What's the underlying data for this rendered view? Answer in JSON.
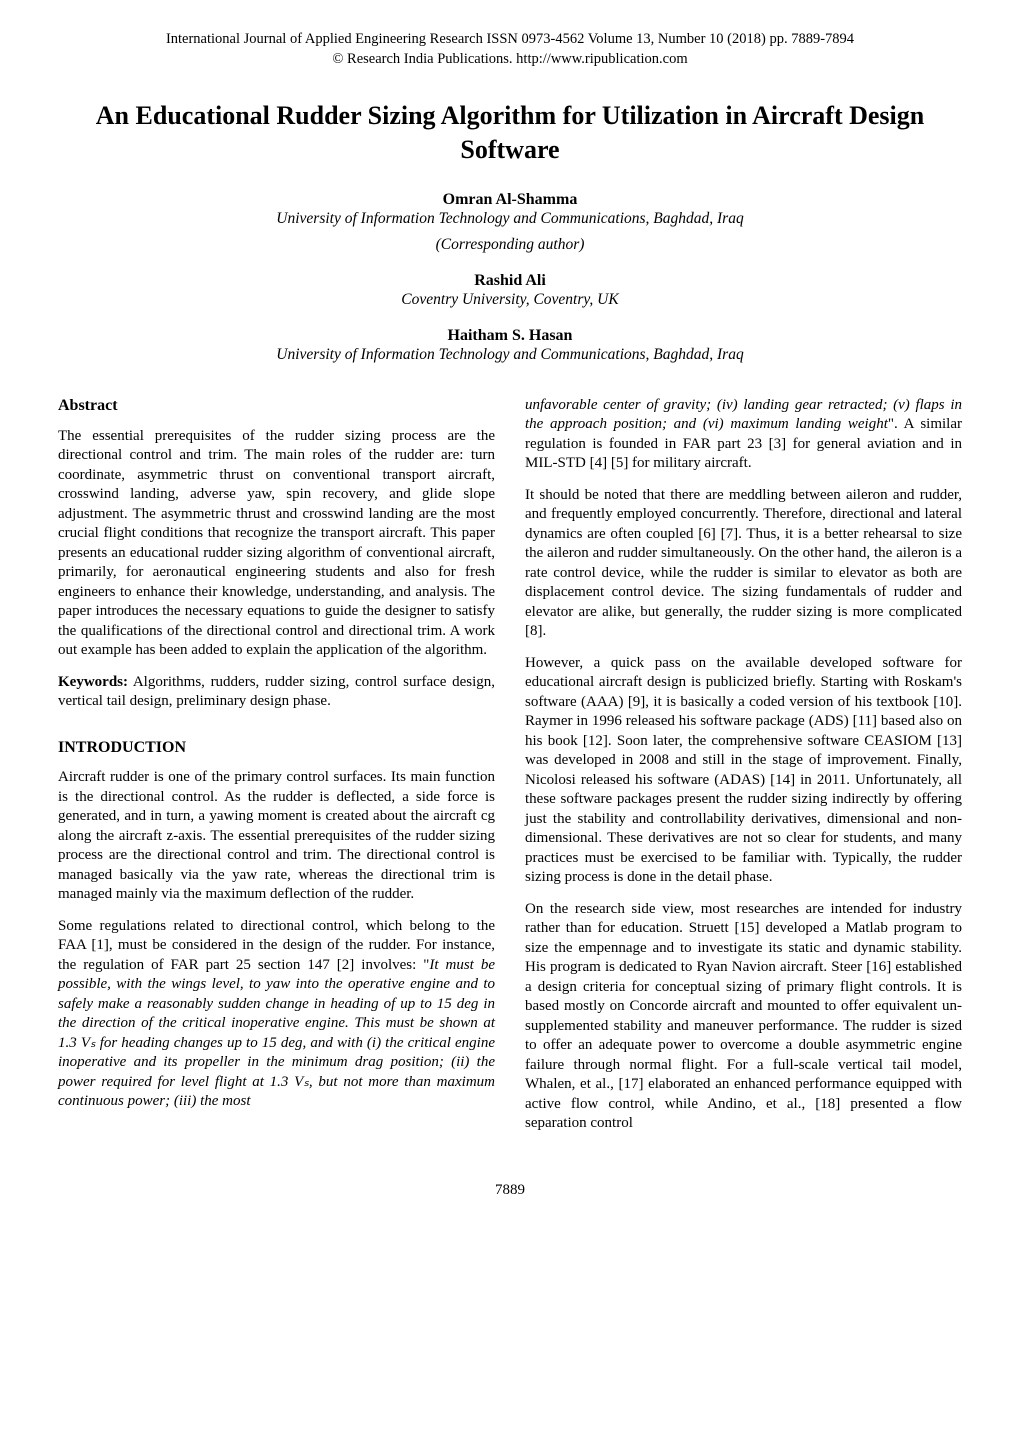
{
  "journal": {
    "line1": "International Journal of Applied Engineering Research ISSN 0973-4562 Volume 13, Number 10 (2018) pp. 7889-7894",
    "line2": "© Research India Publications.  http://www.ripublication.com"
  },
  "title": "An Educational Rudder Sizing Algorithm for Utilization in Aircraft Design Software",
  "authors": {
    "a1": {
      "name": "Omran Al-Shamma",
      "affiliation": "University of Information Technology and Communications, Baghdad, Iraq",
      "corresponding": "(Corresponding author)"
    },
    "a2": {
      "name": "Rashid Ali",
      "affiliation": "Coventry University, Coventry, UK"
    },
    "a3": {
      "name": "Haitham S. Hasan",
      "affiliation": "University of Information Technology and Communications, Baghdad, Iraq"
    }
  },
  "left": {
    "abstract_heading": "Abstract",
    "abstract_p1": "The essential prerequisites of the rudder sizing process are the directional control and trim. The main roles of the rudder are: turn coordinate, asymmetric thrust on conventional transport aircraft, crosswind landing, adverse yaw, spin recovery, and glide slope adjustment. The asymmetric thrust and crosswind landing are the most crucial flight conditions that recognize the transport aircraft. This paper presents an educational rudder sizing algorithm of conventional aircraft, primarily, for aeronautical engineering students and also for fresh engineers to enhance their knowledge, understanding, and analysis. The paper introduces the necessary equations to guide the designer to satisfy the qualifications of the directional control and directional trim. A work out example has been added to explain the application of the algorithm.",
    "kw_label": "Keywords:",
    "kw_text": " Algorithms, rudders, rudder sizing, control surface design, vertical tail design, preliminary design phase.",
    "intro_heading": "INTRODUCTION",
    "intro_p1": "Aircraft rudder is one of the primary control surfaces. Its main function is the directional control. As the rudder is deflected, a side force is generated, and in turn, a yawing moment is created about the aircraft cg along the aircraft z-axis. The essential prerequisites of the rudder sizing process are the directional control and trim. The directional control is managed basically via the yaw rate, whereas the directional trim is managed mainly via the maximum deflection of the rudder.",
    "intro_p2_a": "Some regulations related to directional control, which belong to the FAA [1], must be considered in the design of the rudder. For instance, the regulation of FAR part 25 section 147 [2] involves: \"",
    "intro_p2_italic": "It must be possible, with the wings level, to yaw into the operative engine and to safely make a reasonably sudden change in heading of up to 15 deg in the direction of the critical inoperative engine. This must be shown at 1.3 Vₛ for heading changes up to 15 deg, and with (i) the critical engine inoperative and its propeller in the minimum drag position; (ii) the power required for level flight at 1.3 Vₛ, but not more than maximum continuous power; (iii) the most"
  },
  "right": {
    "p1_italic": "unfavorable center of gravity; (iv) landing gear retracted; (v) flaps in the approach position; and (vi) maximum landing weight",
    "p1_b": "\". A similar regulation is founded in FAR part 23 [3] for general aviation and in MIL-STD [4] [5] for military aircraft.",
    "p2": "It should be noted that there are meddling between aileron and rudder, and frequently employed concurrently. Therefore, directional and lateral dynamics are often coupled [6] [7]. Thus, it is a better rehearsal to size the aileron and rudder simultaneously. On the other hand, the aileron is a rate control device, while the rudder is similar to elevator as both are displacement control device. The sizing fundamentals of rudder and elevator are alike, but generally, the rudder sizing is more complicated [8].",
    "p3": "However, a quick pass on the available developed software for educational aircraft design is publicized briefly. Starting with Roskam's software (AAA) [9], it is basically a coded version of his textbook [10]. Raymer in 1996 released his software package (ADS) [11] based also on his book [12]. Soon later, the comprehensive software CEASIOM [13] was developed in 2008 and still in the stage of improvement. Finally, Nicolosi released his software (ADAS) [14] in 2011. Unfortunately, all these software packages present the rudder sizing indirectly by offering just the stability and controllability derivatives, dimensional and non-dimensional. These derivatives are not so clear for students, and many practices must be exercised to be familiar with. Typically, the rudder sizing process is done in the detail phase.",
    "p4": "On the research side view, most researches are intended for industry rather than for education. Struett [15] developed a Matlab program to size the empennage and to investigate its static and dynamic stability. His program is dedicated to Ryan Navion aircraft. Steer [16] established a design criteria for conceptual sizing of primary flight controls. It is based mostly on Concorde aircraft and mounted to offer equivalent un-supplemented stability and maneuver performance. The rudder is sized to offer an adequate power to overcome a double asymmetric engine failure through normal flight. For a full-scale vertical tail model, Whalen, et al., [17] elaborated an enhanced performance equipped with active flow control, while Andino, et al., [18] presented a flow separation control"
  },
  "page_number": "7889"
}
